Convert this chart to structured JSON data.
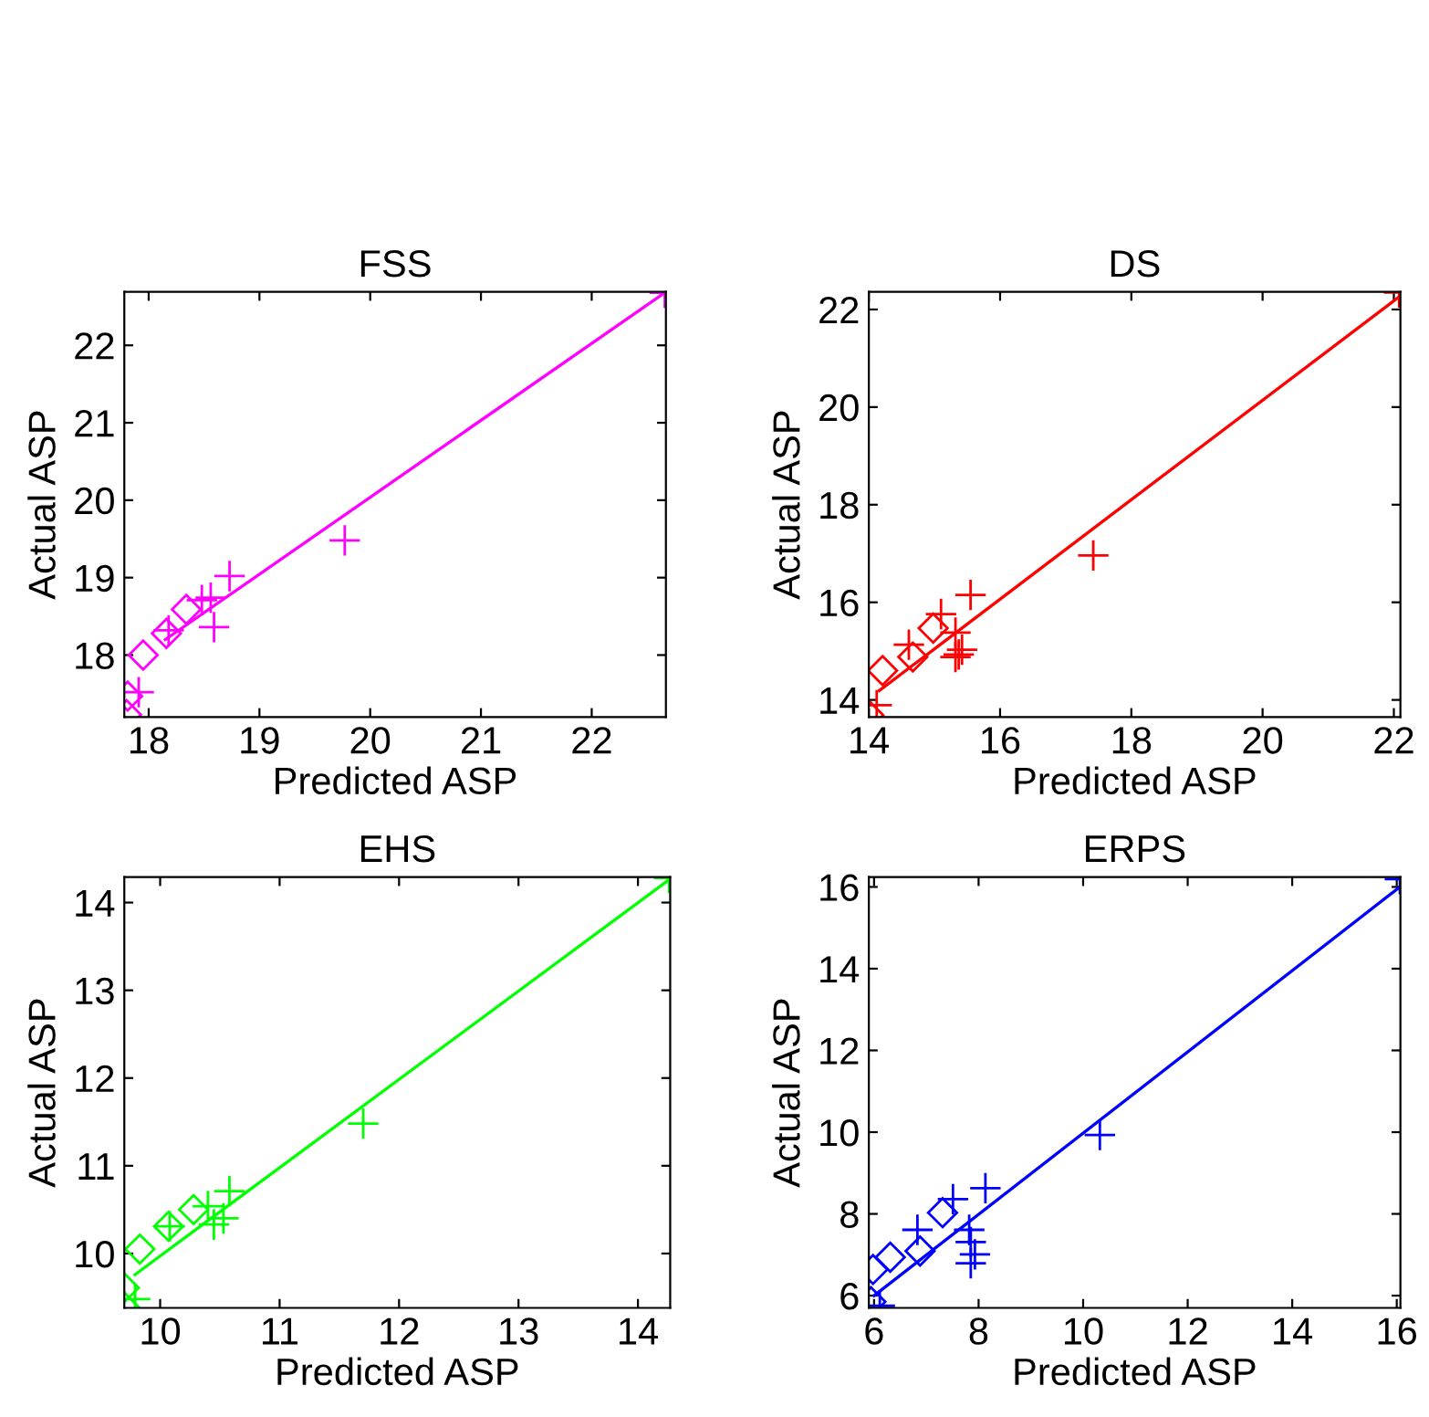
{
  "chart_data": [
    {
      "type": "scatter",
      "title": "FSS",
      "xlabel": "Predicted ASP",
      "ylabel": "Actual ASP",
      "xlim": [
        17.78,
        22.67
      ],
      "ylim": [
        17.2,
        22.69
      ],
      "xticks": [
        18,
        19,
        20,
        21,
        22
      ],
      "yticks": [
        18,
        19,
        20,
        21,
        22
      ],
      "grid": false,
      "legend": false,
      "series": [
        {
          "marker": "diamond",
          "color": "#ff00ff",
          "x": [
            17.8,
            17.81,
            17.95,
            18.16,
            18.34
          ],
          "values": [
            17.23,
            17.47,
            18.0,
            18.28,
            18.59
          ]
        },
        {
          "marker": "cross",
          "color": "#ff00ff",
          "x": [
            17.91,
            18.18,
            18.48,
            18.56,
            18.59,
            18.73,
            19.77,
            22.66
          ],
          "values": [
            17.52,
            18.32,
            18.71,
            18.74,
            18.36,
            19.02,
            19.48,
            22.68
          ]
        },
        {
          "type": "line",
          "marker": "none",
          "line_style": "solid",
          "color": "#ff00ff",
          "x": [
            18.15,
            22.66
          ],
          "values": [
            18.2,
            22.68
          ]
        }
      ]
    },
    {
      "type": "scatter",
      "title": "DS",
      "xlabel": "Predicted ASP",
      "ylabel": "Actual ASP",
      "xlim": [
        14,
        22.1
      ],
      "ylim": [
        13.65,
        22.36
      ],
      "xticks": [
        14,
        16,
        18,
        20,
        22
      ],
      "yticks": [
        14,
        16,
        18,
        20,
        22
      ],
      "grid": false,
      "legend": false,
      "series": [
        {
          "marker": "diamond",
          "color": "#ff0000",
          "x": [
            14.0,
            14.21,
            14.67,
            14.98
          ],
          "values": [
            13.69,
            14.6,
            14.88,
            15.47
          ]
        },
        {
          "marker": "cross",
          "color": "#ff0000",
          "x": [
            14.12,
            14.61,
            15.1,
            15.32,
            15.37,
            15.32,
            15.42,
            15.55,
            17.42,
            22.08
          ],
          "values": [
            13.89,
            15.13,
            15.76,
            15.38,
            14.93,
            14.88,
            15.03,
            16.15,
            16.96,
            22.35
          ]
        },
        {
          "type": "line",
          "marker": "none",
          "line_style": "solid",
          "color": "#ff0000",
          "x": [
            14.16,
            22.08
          ],
          "values": [
            14.19,
            22.26
          ]
        }
      ]
    },
    {
      "type": "scatter",
      "title": "EHS",
      "xlabel": "Predicted ASP",
      "ylabel": "Actual ASP",
      "xlim": [
        9.7,
        14.27
      ],
      "ylim": [
        9.38,
        14.29
      ],
      "xticks": [
        10,
        11,
        12,
        13,
        14
      ],
      "yticks": [
        10,
        11,
        12,
        13,
        14
      ],
      "grid": false,
      "legend": false,
      "series": [
        {
          "marker": "diamond",
          "color": "#00ff00",
          "x": [
            9.7,
            9.7,
            9.83,
            10.07,
            10.28
          ],
          "values": [
            9.39,
            9.61,
            10.05,
            10.31,
            10.5
          ]
        },
        {
          "marker": "cross",
          "color": "#00ff00",
          "x": [
            9.79,
            10.08,
            10.4,
            10.45,
            10.58,
            10.53,
            11.7,
            14.26
          ],
          "values": [
            9.48,
            10.31,
            10.54,
            10.33,
            10.71,
            10.4,
            11.48,
            14.28
          ]
        },
        {
          "type": "line",
          "marker": "none",
          "line_style": "solid",
          "color": "#00ff00",
          "x": [
            9.79,
            14.26
          ],
          "values": [
            9.76,
            14.26
          ]
        }
      ]
    },
    {
      "type": "scatter",
      "title": "ERPS",
      "xlabel": "Predicted ASP",
      "ylabel": "Actual ASP",
      "xlim": [
        5.9,
        16.07
      ],
      "ylim": [
        5.7,
        16.24
      ],
      "xticks": [
        6,
        8,
        10,
        12,
        14,
        16
      ],
      "yticks": [
        6,
        8,
        10,
        12,
        14,
        16
      ],
      "grid": false,
      "legend": false,
      "series": [
        {
          "marker": "diamond",
          "color": "#0000ff",
          "x": [
            5.94,
            5.98,
            6.31,
            6.88,
            7.31
          ],
          "values": [
            5.85,
            6.64,
            6.94,
            7.09,
            8.03
          ]
        },
        {
          "marker": "cross",
          "color": "#0000ff",
          "x": [
            6.11,
            6.83,
            7.51,
            7.82,
            7.85,
            7.85,
            7.93,
            8.13,
            10.32,
            16.06
          ],
          "values": [
            5.75,
            7.61,
            8.36,
            7.61,
            7.31,
            6.79,
            7.01,
            8.63,
            9.93,
            16.19
          ]
        },
        {
          "type": "line",
          "marker": "none",
          "line_style": "solid",
          "color": "#0000ff",
          "x": [
            6.0,
            16.06
          ],
          "values": [
            6.0,
            16.0
          ]
        }
      ]
    }
  ]
}
